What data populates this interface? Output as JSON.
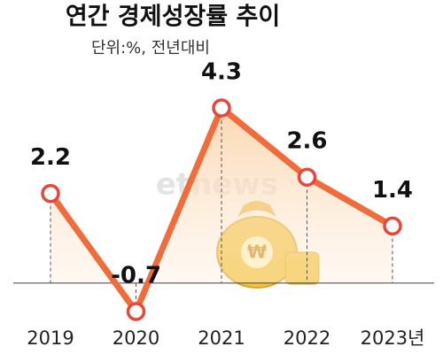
{
  "chart_data": {
    "type": "line",
    "title": "연간 경제성장률 추이",
    "subtitle": "단위:%, 전년대비",
    "categories": [
      "2019",
      "2020",
      "2021",
      "2022",
      "2023년"
    ],
    "series": [
      {
        "name": "경제성장률",
        "color": "#f26b3a",
        "values": [
          2.2,
          -0.7,
          4.3,
          2.6,
          1.4
        ]
      }
    ],
    "watermark": "etnews"
  }
}
